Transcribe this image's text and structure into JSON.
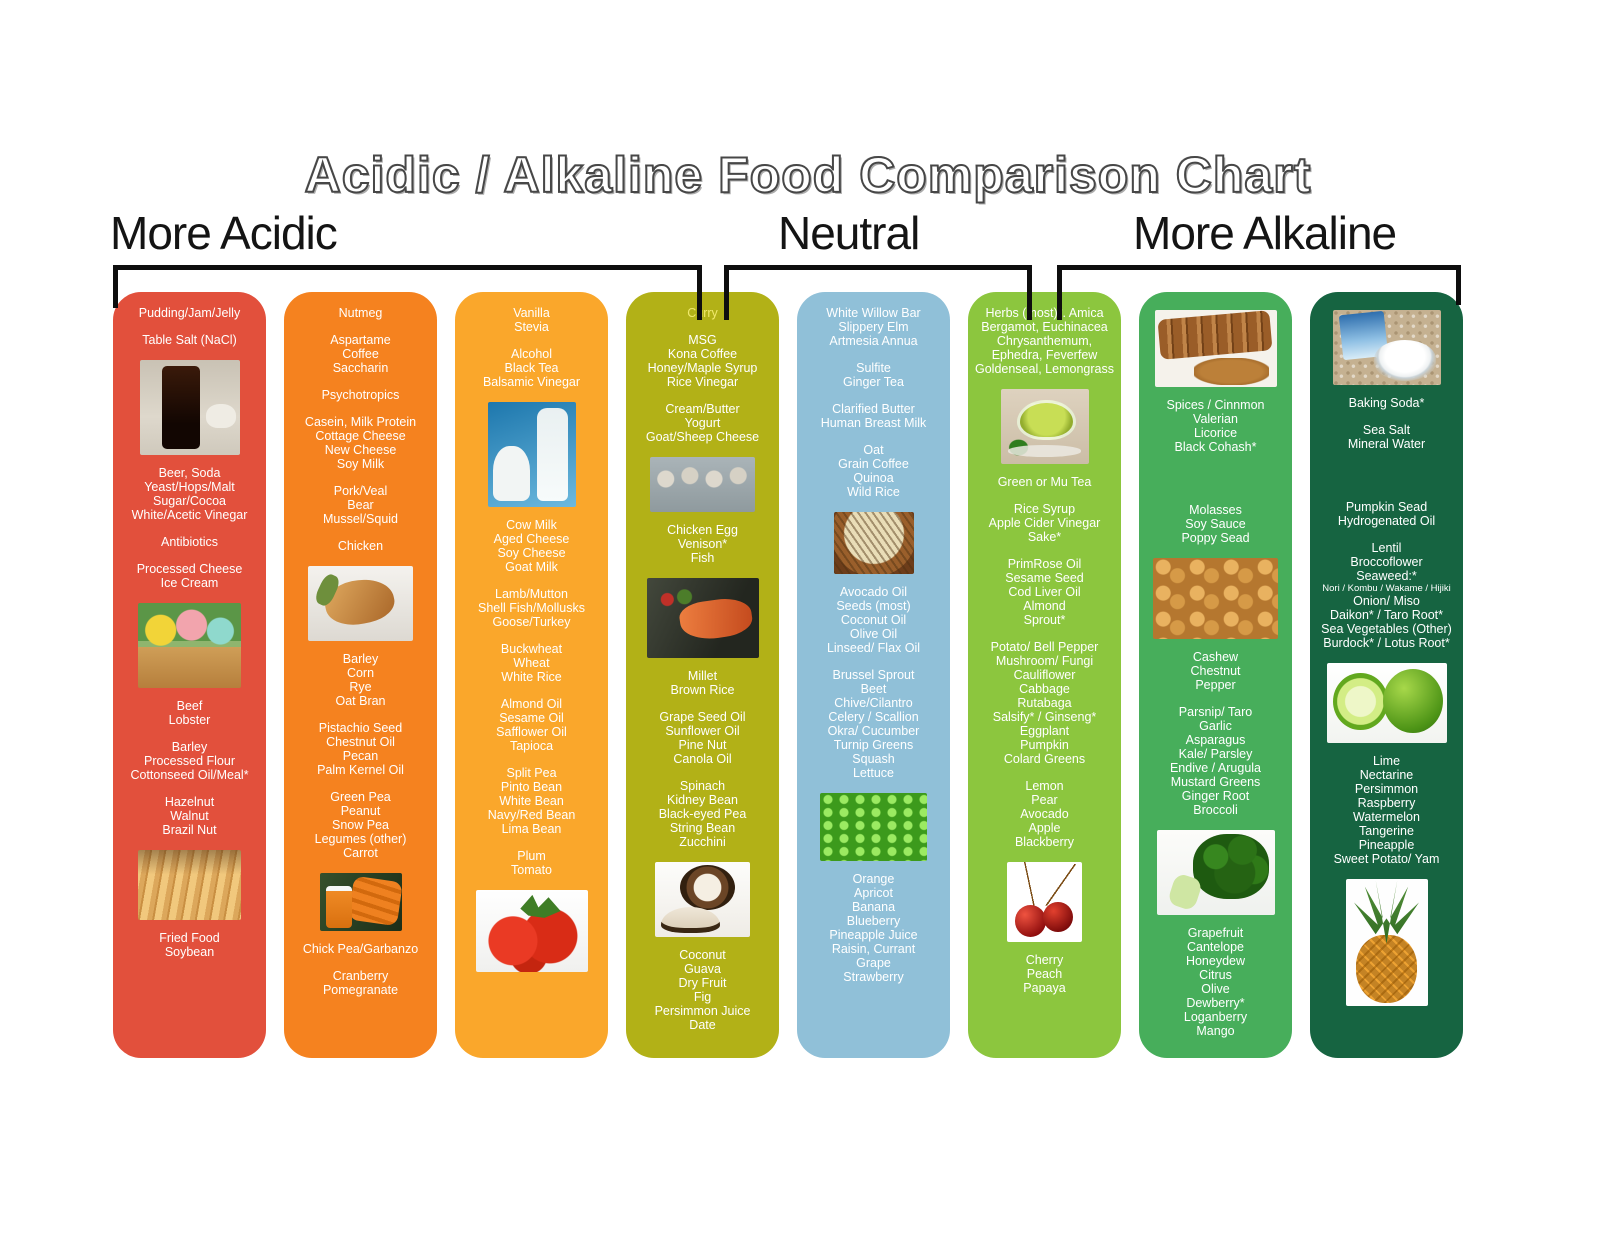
{
  "title": "Acidic / Alkaline Food Comparison Chart",
  "sections": {
    "acidic": "More Acidic",
    "neutral": "Neutral",
    "alkaline": "More Alkaline"
  },
  "colors": {
    "banner_green": "#4bb454",
    "bracket_black": "#0e0e0e",
    "column_red": "#e2503c",
    "column_orange": "#f5821f",
    "column_amber": "#faa72b",
    "column_olive": "#b2b117",
    "column_light_blue": "#90c0d8",
    "column_yellow_green": "#8cc63e",
    "column_green": "#47ae5b",
    "column_dark_green": "#166441",
    "text_white": "#ffffff",
    "curry_yellow": "#f1e96d"
  },
  "chart_data": {
    "type": "table",
    "title": "Acidic / Alkaline Food Comparison Chart",
    "categories": [
      "More Acidic",
      "Neutral",
      "More Alkaline"
    ],
    "legend_position": "top",
    "columns": [
      {
        "id": "1-most-acidic",
        "section": "More Acidic",
        "color": "#e2503c",
        "blocks": [
          {
            "type": "text",
            "lines": [
              "Pudding/Jam/Jelly"
            ]
          },
          {
            "type": "text",
            "lines": [
              "Table Salt (NaCl)"
            ]
          },
          {
            "type": "photo",
            "name": "cola-glass-photo",
            "cls": "ph-cola"
          },
          {
            "type": "text",
            "lines": [
              "Beer, Soda",
              "Yeast/Hops/Malt",
              "Sugar/Cocoa",
              "White/Acetic Vinegar"
            ]
          },
          {
            "type": "text",
            "lines": [
              "Antibiotics"
            ]
          },
          {
            "type": "text",
            "lines": [
              "Processed Cheese",
              "Ice Cream"
            ]
          },
          {
            "type": "photo",
            "name": "ice-cream-cones-photo",
            "cls": "ph-icecream"
          },
          {
            "type": "text",
            "lines": [
              "Beef",
              "Lobster"
            ]
          },
          {
            "type": "text",
            "lines": [
              "Barley",
              "Processed Flour",
              "Cottonseed Oil/Meal*"
            ]
          },
          {
            "type": "text",
            "lines": [
              "Hazelnut",
              "Walnut",
              "Brazil Nut"
            ]
          },
          {
            "type": "photo",
            "name": "french-fries-photo",
            "cls": "ph-fries"
          },
          {
            "type": "text",
            "lines": [
              "Fried Food",
              "Soybean"
            ]
          }
        ]
      },
      {
        "id": "2-acidic",
        "section": "More Acidic",
        "color": "#f5821f",
        "blocks": [
          {
            "type": "text",
            "lines": [
              "Nutmeg"
            ]
          },
          {
            "type": "text",
            "lines": [
              "Aspartame",
              "Coffee",
              "Saccharin"
            ]
          },
          {
            "type": "text",
            "lines": [
              "Psychotropics"
            ]
          },
          {
            "type": "text",
            "lines": [
              "Casein, Milk Protein",
              "Cottage Cheese",
              "New Cheese",
              "Soy Milk"
            ]
          },
          {
            "type": "text",
            "lines": [
              "Pork/Veal",
              "Bear",
              "Mussel/Squid"
            ]
          },
          {
            "type": "text",
            "lines": [
              "Chicken"
            ]
          },
          {
            "type": "photo",
            "name": "chicken-dish-photo",
            "cls": "ph-chicken"
          },
          {
            "type": "text",
            "lines": [
              "Barley",
              "Corn",
              "Rye",
              "Oat Bran"
            ]
          },
          {
            "type": "text",
            "lines": [
              "Pistachio Seed",
              "Chestnut Oil",
              "Pecan",
              "Palm Kernel Oil"
            ]
          },
          {
            "type": "text",
            "lines": [
              "Green Pea",
              "Peanut",
              "Snow Pea",
              "Legumes (other)",
              "Carrot"
            ]
          },
          {
            "type": "photo",
            "name": "carrots-and-juice-photo",
            "cls": "ph-carrots"
          },
          {
            "type": "text",
            "lines": [
              "Chick Pea/Garbanzo"
            ]
          },
          {
            "type": "text",
            "lines": [
              "Cranberry",
              "Pomegranate"
            ]
          }
        ]
      },
      {
        "id": "3-mildly-acidic",
        "section": "More Acidic",
        "color": "#faa72b",
        "blocks": [
          {
            "type": "text",
            "lines": [
              "Vanilla",
              "Stevia"
            ]
          },
          {
            "type": "text",
            "lines": [
              "Alcohol",
              "Black Tea",
              "Balsamic Vinegar"
            ]
          },
          {
            "type": "photo",
            "name": "milk-bottles-photo",
            "cls": "ph-milk"
          },
          {
            "type": "text",
            "lines": [
              "Cow Milk",
              "Aged Cheese",
              "Soy Cheese",
              "Goat Milk"
            ]
          },
          {
            "type": "text",
            "lines": [
              "Lamb/Mutton",
              "Shell Fish/Mollusks",
              "Goose/Turkey"
            ]
          },
          {
            "type": "text",
            "lines": [
              "Buckwheat",
              "Wheat",
              "White Rice"
            ]
          },
          {
            "type": "text",
            "lines": [
              "Almond Oil",
              "Sesame Oil",
              "Safflower Oil",
              "Tapioca"
            ]
          },
          {
            "type": "text",
            "lines": [
              "Split Pea",
              "Pinto Bean",
              "White Bean",
              "Navy/Red Bean",
              "Lima Bean"
            ]
          },
          {
            "type": "text",
            "lines": [
              "Plum",
              "Tomato"
            ]
          },
          {
            "type": "photo",
            "name": "tomatoes-photo",
            "cls": "ph-tomato"
          }
        ]
      },
      {
        "id": "4-slightly-acidic",
        "section": "More Acidic / Neutral",
        "color": "#b2b117",
        "blocks": [
          {
            "type": "text",
            "lines": [
              {
                "text": "Curry",
                "color": "#f1e96d"
              }
            ]
          },
          {
            "type": "text",
            "lines": [
              "MSG",
              "Kona Coffee",
              "Honey/Maple Syrup",
              "Rice Vinegar"
            ]
          },
          {
            "type": "text",
            "lines": [
              "Cream/Butter",
              "Yogurt",
              "Goat/Sheep Cheese"
            ]
          },
          {
            "type": "photo",
            "name": "egg-carton-photo",
            "cls": "ph-eggs"
          },
          {
            "type": "text",
            "lines": [
              "Chicken Egg",
              "Venison*",
              "Fish"
            ]
          },
          {
            "type": "photo",
            "name": "grilled-fish-photo",
            "cls": "ph-fish"
          },
          {
            "type": "text",
            "lines": [
              "Millet",
              "Brown Rice"
            ]
          },
          {
            "type": "text",
            "lines": [
              "Grape Seed Oil",
              "Sunflower Oil",
              "Pine Nut",
              "Canola Oil"
            ]
          },
          {
            "type": "text",
            "lines": [
              "Spinach",
              "Kidney Bean",
              "Black-eyed Pea",
              "String Bean",
              "Zucchini"
            ]
          },
          {
            "type": "photo",
            "name": "coconut-photo",
            "cls": "ph-coconut"
          },
          {
            "type": "text",
            "lines": [
              "Coconut",
              "Guava",
              "Dry Fruit",
              "Fig",
              "Persimmon Juice",
              "Date"
            ]
          }
        ]
      },
      {
        "id": "5-neutral",
        "section": "Neutral",
        "color": "#90c0d8",
        "blocks": [
          {
            "type": "text",
            "lines": [
              "White Willow Bar",
              "Slippery Elm",
              "Artmesia Annua"
            ]
          },
          {
            "type": "text",
            "lines": [
              "Sulfite",
              "Ginger Tea"
            ]
          },
          {
            "type": "text",
            "lines": [
              "Clarified Butter",
              "Human Breast Milk"
            ]
          },
          {
            "type": "text",
            "lines": [
              "Oat",
              "Grain Coffee",
              "Quinoa",
              "Wild Rice"
            ]
          },
          {
            "type": "photo",
            "name": "wild-rice-bowl-photo",
            "cls": "ph-wildrice"
          },
          {
            "type": "text",
            "lines": [
              "Avocado Oil",
              "Seeds (most)",
              "Coconut Oil",
              "Olive Oil",
              "Linseed/ Flax Oil"
            ]
          },
          {
            "type": "text",
            "lines": [
              "Brussel Sprout",
              "Beet",
              "Chive/Cilantro",
              "Celery / Scallion",
              "Okra/ Cucumber",
              "Turnip Greens",
              "Squash",
              "Lettuce"
            ]
          },
          {
            "type": "photo",
            "name": "lettuce-leaves-photo",
            "cls": "ph-lettuce"
          },
          {
            "type": "text",
            "lines": [
              "Orange",
              "Apricot",
              "Banana",
              "Blueberry",
              "Pineapple Juice",
              "Raisin, Currant",
              "Grape",
              "Strawberry"
            ]
          }
        ]
      },
      {
        "id": "6-slightly-alkaline",
        "section": "Neutral / More Alkaline",
        "color": "#8cc63e",
        "blocks": [
          {
            "type": "text",
            "lines": [
              "Herbs (most)*. Amica",
              "Bergamot, Euchinacea",
              "Chrysanthemum,",
              "Ephedra, Feverfew",
              "Goldenseal, Lemongrass"
            ]
          },
          {
            "type": "photo",
            "name": "green-tea-cup-photo",
            "cls": "ph-greentea"
          },
          {
            "type": "text",
            "lines": [
              "Green or Mu Tea"
            ]
          },
          {
            "type": "text",
            "lines": [
              "Rice Syrup",
              "Apple Cider Vinegar",
              "Sake*"
            ]
          },
          {
            "type": "text",
            "lines": [
              "PrimRose Oil",
              "Sesame Seed",
              "Cod Liver Oil",
              "Almond",
              "Sprout*"
            ]
          },
          {
            "type": "text",
            "lines": [
              "Potato/ Bell Pepper",
              "Mushroom/ Fungi",
              "Cauliflower",
              "Cabbage",
              "Rutabaga",
              "Salsify* / Ginseng*",
              "Eggplant",
              "Pumpkin",
              "Colard Greens"
            ]
          },
          {
            "type": "text",
            "lines": [
              "Lemon",
              "Pear",
              "Avocado",
              "Apple",
              "Blackberry"
            ]
          },
          {
            "type": "photo",
            "name": "cherries-photo",
            "cls": "ph-cherries"
          },
          {
            "type": "text",
            "lines": [
              "Cherry",
              "Peach",
              "Papaya"
            ]
          }
        ]
      },
      {
        "id": "7-alkaline",
        "section": "More Alkaline",
        "color": "#47ae5b",
        "blocks": [
          {
            "type": "photo",
            "name": "cinnamon-spices-photo",
            "cls": "ph-cinnamon"
          },
          {
            "type": "text",
            "lines": [
              "Spices / Cinnmon",
              "Valerian",
              "Licorice",
              "Black Cohash*"
            ]
          },
          {
            "type": "spacer"
          },
          {
            "type": "text",
            "lines": [
              "Molasses",
              "Soy Sauce",
              "Poppy Sead"
            ]
          },
          {
            "type": "photo",
            "name": "cashews-photo",
            "cls": "ph-cashews"
          },
          {
            "type": "text",
            "lines": [
              "Cashew",
              "Chestnut",
              "Pepper"
            ]
          },
          {
            "type": "text",
            "lines": [
              "Parsnip/ Taro",
              "Garlic",
              "Asparagus",
              "Kale/ Parsley",
              "Endive / Arugula",
              "Mustard Greens",
              "Ginger Root",
              "Broccoli"
            ]
          },
          {
            "type": "photo",
            "name": "broccoli-photo",
            "cls": "ph-broccoli"
          },
          {
            "type": "text",
            "lines": [
              "Grapefruit",
              "Cantelope",
              "Honeydew",
              "Citrus",
              "Olive",
              "Dewberry*",
              "Loganberry",
              "Mango"
            ]
          }
        ]
      },
      {
        "id": "8-most-alkaline",
        "section": "More Alkaline",
        "color": "#166441",
        "blocks": [
          {
            "type": "photo",
            "name": "baking-soda-bowl-photo",
            "cls": "ph-bakingsoda"
          },
          {
            "type": "text",
            "lines": [
              "Baking Soda*"
            ]
          },
          {
            "type": "text",
            "lines": [
              "Sea Salt",
              "Mineral Water"
            ]
          },
          {
            "type": "spacer"
          },
          {
            "type": "text",
            "lines": [
              "Pumpkin Sead",
              "Hydrogenated Oil"
            ]
          },
          {
            "type": "text",
            "lines": [
              "Lentil",
              "Broccoflower",
              "Seaweed:*",
              {
                "text": "Nori / Kombu / Wakame / Hijiki",
                "small": true
              },
              "Onion/ Miso",
              "Daikon* / Taro Root*",
              "Sea Vegetables (Other)",
              "Burdock* / Lotus Root*"
            ]
          },
          {
            "type": "photo",
            "name": "limes-photo",
            "cls": "ph-limes"
          },
          {
            "type": "text",
            "lines": [
              "Lime",
              "Nectarine",
              "Persimmon",
              "Raspberry",
              "Watermelon",
              "Tangerine",
              "Pineapple",
              "Sweet Potato/ Yam"
            ]
          },
          {
            "type": "photo",
            "name": "pineapple-photo",
            "cls": "ph-pineapple"
          }
        ]
      }
    ]
  }
}
